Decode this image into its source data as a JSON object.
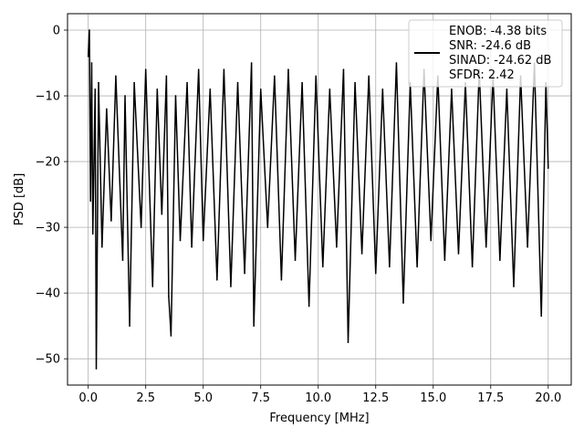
{
  "chart_data": {
    "type": "line",
    "xlabel": "Frequency [MHz]",
    "ylabel": "PSD [dB]",
    "xlim": [
      -0.9,
      21.0
    ],
    "ylim": [
      -54.0,
      2.5
    ],
    "xticks": [
      {
        "value": 0.0,
        "label": "0.0"
      },
      {
        "value": 2.5,
        "label": "2.5"
      },
      {
        "value": 5.0,
        "label": "5.0"
      },
      {
        "value": 7.5,
        "label": "7.5"
      },
      {
        "value": 10.0,
        "label": "10.0"
      },
      {
        "value": 12.5,
        "label": "12.5"
      },
      {
        "value": 15.0,
        "label": "15.0"
      },
      {
        "value": 17.5,
        "label": "17.5"
      },
      {
        "value": 20.0,
        "label": "20.0"
      }
    ],
    "yticks": [
      {
        "value": 0,
        "label": "0"
      },
      {
        "value": -10,
        "label": "−10"
      },
      {
        "value": -20,
        "label": "−20"
      },
      {
        "value": -30,
        "label": "−30"
      },
      {
        "value": -40,
        "label": "−40"
      },
      {
        "value": -50,
        "label": "−50"
      }
    ],
    "grid": true,
    "legend_position": "top-right",
    "legend_lines": [
      "ENOB: -4.38 bits",
      "SNR: -24.6 dB",
      "SINAD: -24.62 dB",
      "SFDR: 2.42"
    ],
    "line_color": "#000000",
    "series": [
      {
        "x": [
          0.0,
          0.05,
          0.1,
          0.15,
          0.2,
          0.3,
          0.35,
          0.45,
          0.6,
          0.8,
          1.0,
          1.2,
          1.5,
          1.6,
          1.8,
          2.0,
          2.3,
          2.5,
          2.8,
          3.0,
          3.2,
          3.4,
          3.5,
          3.6,
          3.8,
          4.0,
          4.3,
          4.5,
          4.8,
          5.0,
          5.3,
          5.6,
          5.9,
          6.2,
          6.5,
          6.8,
          7.1,
          7.2,
          7.5,
          7.8,
          8.1,
          8.4,
          8.7,
          9.0,
          9.3,
          9.6,
          9.9,
          10.2,
          10.5,
          10.8,
          11.1,
          11.3,
          11.6,
          11.9,
          12.2,
          12.5,
          12.8,
          13.1,
          13.4,
          13.7,
          14.0,
          14.3,
          14.6,
          14.9,
          15.2,
          15.5,
          15.8,
          16.1,
          16.4,
          16.7,
          17.0,
          17.3,
          17.6,
          17.9,
          18.2,
          18.5,
          18.8,
          19.1,
          19.4,
          19.7,
          19.9,
          20.0
        ],
        "y": [
          -4.0,
          0.0,
          -26.0,
          -5.0,
          -31.0,
          -9.0,
          -51.5,
          -8.0,
          -33.0,
          -12.0,
          -29.0,
          -7.0,
          -35.0,
          -10.0,
          -45.0,
          -8.0,
          -30.0,
          -6.0,
          -39.0,
          -9.0,
          -28.0,
          -7.0,
          -40.5,
          -46.5,
          -10.0,
          -32.0,
          -8.0,
          -33.0,
          -6.0,
          -32.0,
          -9.0,
          -38.0,
          -6.0,
          -39.0,
          -8.0,
          -37.0,
          -5.0,
          -45.0,
          -9.0,
          -30.0,
          -7.0,
          -38.0,
          -6.0,
          -35.0,
          -8.0,
          -42.0,
          -7.0,
          -36.0,
          -9.0,
          -33.0,
          -6.0,
          -47.5,
          -8.0,
          -34.0,
          -7.0,
          -37.0,
          -9.0,
          -36.0,
          -5.0,
          -41.5,
          -8.0,
          -36.0,
          -6.0,
          -32.0,
          -7.0,
          -35.0,
          -9.0,
          -34.0,
          -8.0,
          -36.0,
          -6.0,
          -33.0,
          -7.0,
          -35.0,
          -9.0,
          -39.0,
          -7.0,
          -33.0,
          -5.0,
          -43.5,
          -8.0,
          -21.0
        ]
      }
    ]
  }
}
